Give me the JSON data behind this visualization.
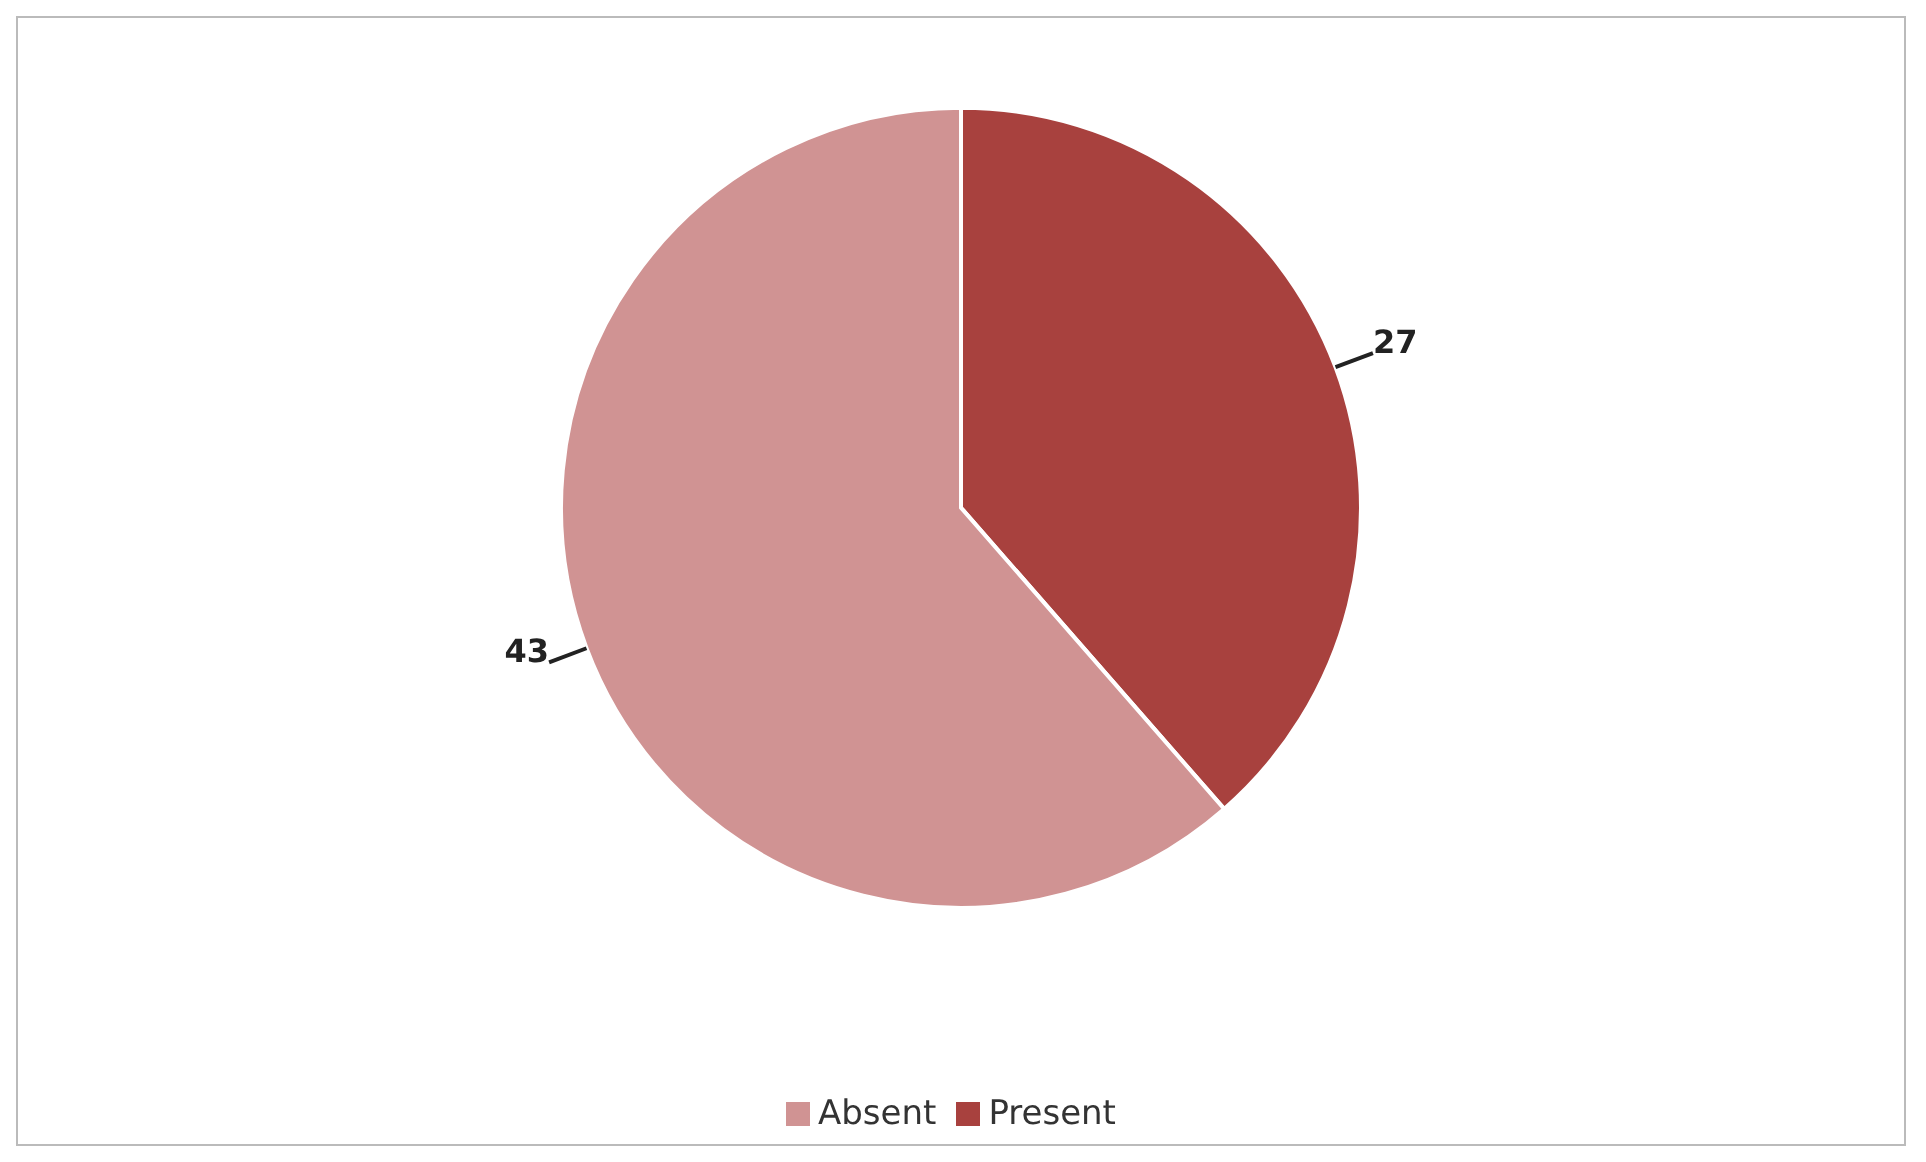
{
  "chart_data": {
    "type": "pie",
    "categories": [
      "Present",
      "Absent"
    ],
    "values": [
      27,
      43
    ],
    "colors": [
      "#a8413e",
      "#d09393"
    ],
    "data_labels": true,
    "legend": "bottom"
  }
}
